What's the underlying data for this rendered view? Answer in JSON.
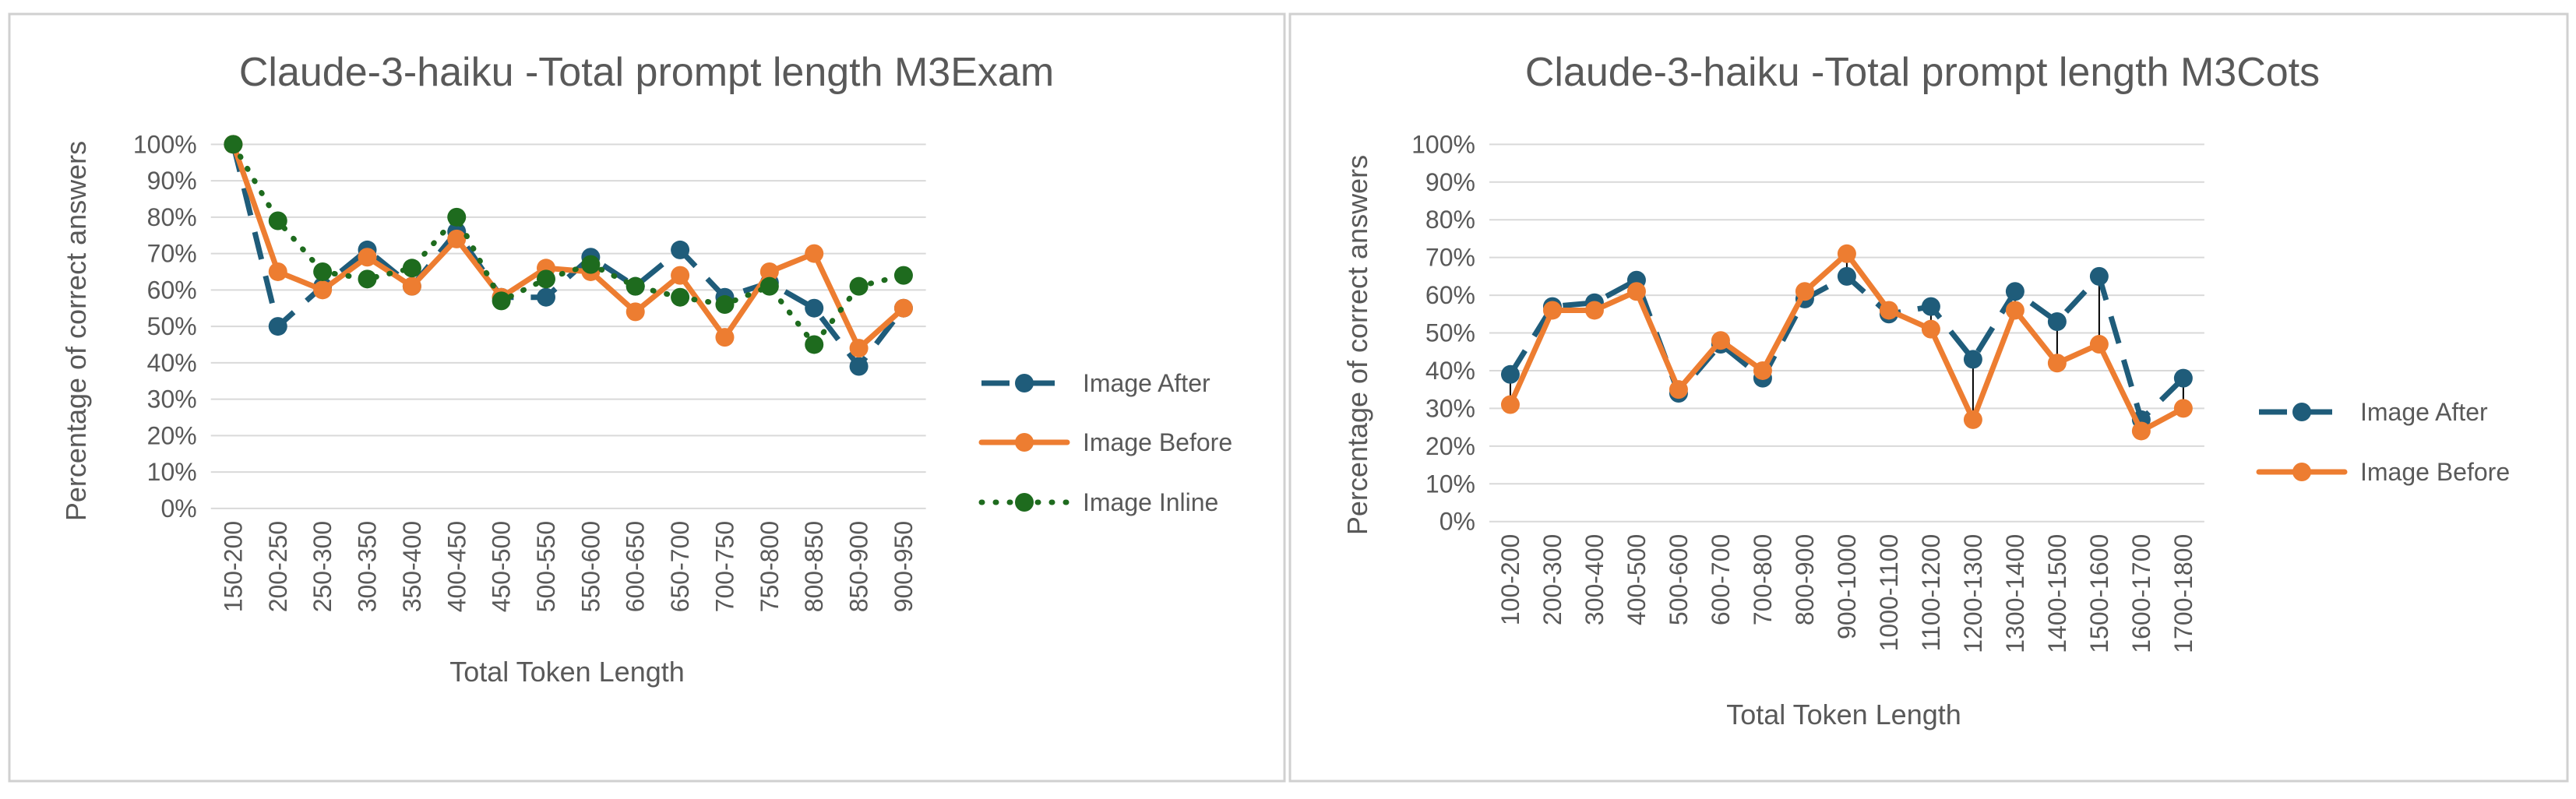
{
  "colors": {
    "image_after": "#1F5C7A",
    "image_before": "#ED7D31",
    "image_inline": "#1E6B1E",
    "gridline": "#D9D9D9",
    "axis_text": "#595959",
    "panel_border": "#D0D0D0",
    "drop_line": "#000000"
  },
  "chart_data": [
    {
      "type": "line",
      "title": "Claude-3-haiku -Total prompt length M3Exam",
      "xlabel": "Total Token Length",
      "ylabel": "Percentage of correct answers",
      "ylim": [
        0,
        100
      ],
      "ytick_labels": [
        "0%",
        "10%",
        "20%",
        "30%",
        "40%",
        "50%",
        "60%",
        "70%",
        "80%",
        "90%",
        "100%"
      ],
      "grid": true,
      "legend_position": "right",
      "categories": [
        "150-200",
        "200-250",
        "250-300",
        "300-350",
        "350-400",
        "400-450",
        "450-500",
        "500-550",
        "550-600",
        "600-650",
        "650-700",
        "700-750",
        "750-800",
        "800-850",
        "850-900",
        "900-950"
      ],
      "series": [
        {
          "name": "Image After",
          "style": "dashed-dots",
          "values": [
            100,
            50,
            61,
            71,
            61,
            76,
            58,
            58,
            69,
            61,
            71,
            58,
            62,
            55,
            39,
            55
          ]
        },
        {
          "name": "Image Before",
          "style": "solid",
          "values": [
            100,
            65,
            60,
            69,
            61,
            74,
            58,
            66,
            65,
            54,
            64,
            47,
            65,
            70,
            44,
            55
          ]
        },
        {
          "name": "Image Inline",
          "style": "dotted",
          "values": [
            100,
            79,
            65,
            63,
            66,
            80,
            57,
            63,
            67,
            61,
            58,
            56,
            61,
            45,
            61,
            64
          ]
        }
      ]
    },
    {
      "type": "line",
      "title": "Claude-3-haiku -Total prompt length M3Cots",
      "xlabel": "Total Token Length",
      "ylabel": "Percentage of correct answers",
      "ylim": [
        0,
        100
      ],
      "ytick_labels": [
        "0%",
        "10%",
        "20%",
        "30%",
        "40%",
        "50%",
        "60%",
        "70%",
        "80%",
        "90%",
        "100%"
      ],
      "grid": true,
      "legend_position": "right",
      "high_low_lines": true,
      "categories": [
        "100-200",
        "200-300",
        "300-400",
        "400-500",
        "500-600",
        "600-700",
        "700-800",
        "800-900",
        "900-1000",
        "1000-1100",
        "1100-1200",
        "1200-1300",
        "1300-1400",
        "1400-1500",
        "1500-1600",
        "1600-1700",
        "1700-1800"
      ],
      "series": [
        {
          "name": "Image After",
          "style": "dashed-dots",
          "values": [
            39,
            57,
            58,
            64,
            34,
            47,
            38,
            59,
            65,
            55,
            57,
            43,
            61,
            53,
            65,
            27,
            38
          ]
        },
        {
          "name": "Image Before",
          "style": "solid",
          "values": [
            31,
            56,
            56,
            61,
            35,
            48,
            40,
            61,
            71,
            56,
            51,
            27,
            56,
            42,
            47,
            24,
            30
          ]
        }
      ]
    }
  ]
}
